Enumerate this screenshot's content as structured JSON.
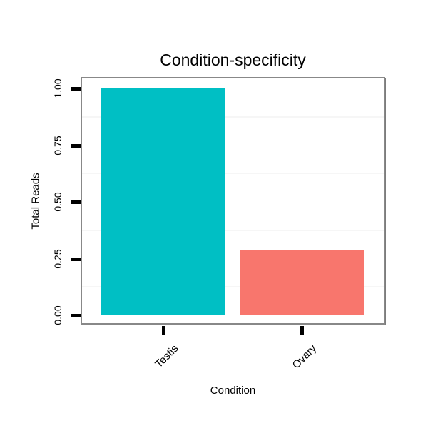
{
  "chart_data": {
    "type": "bar",
    "title": "Condition-specificity",
    "xlabel": "Condition",
    "ylabel": "Total Reads",
    "categories": [
      "Testis",
      "Ovary"
    ],
    "values": [
      1.0,
      0.29
    ],
    "bar_colors": [
      "#00BFC4",
      "#F8766D"
    ],
    "ylim": [
      0,
      1.0
    ],
    "ytick_values": [
      0,
      0.25,
      0.5,
      0.75,
      1.0
    ],
    "ytick_labels": [
      "0.00",
      "0.25",
      "0.50",
      "0.75",
      "1.00"
    ],
    "minor_gridline_values": [
      0.125,
      0.375,
      0.625,
      0.875
    ],
    "grid": "minor-horizontal-only",
    "legend": "none",
    "x_tick_label_rotation_deg": 45,
    "y_tick_label_rotation_deg": 90,
    "background_color": "#FFFFFF",
    "panel_border_color": "#888888",
    "minor_grid_color": "#F6F6F6",
    "tick_color": "#000000",
    "text_color": "#000000"
  }
}
